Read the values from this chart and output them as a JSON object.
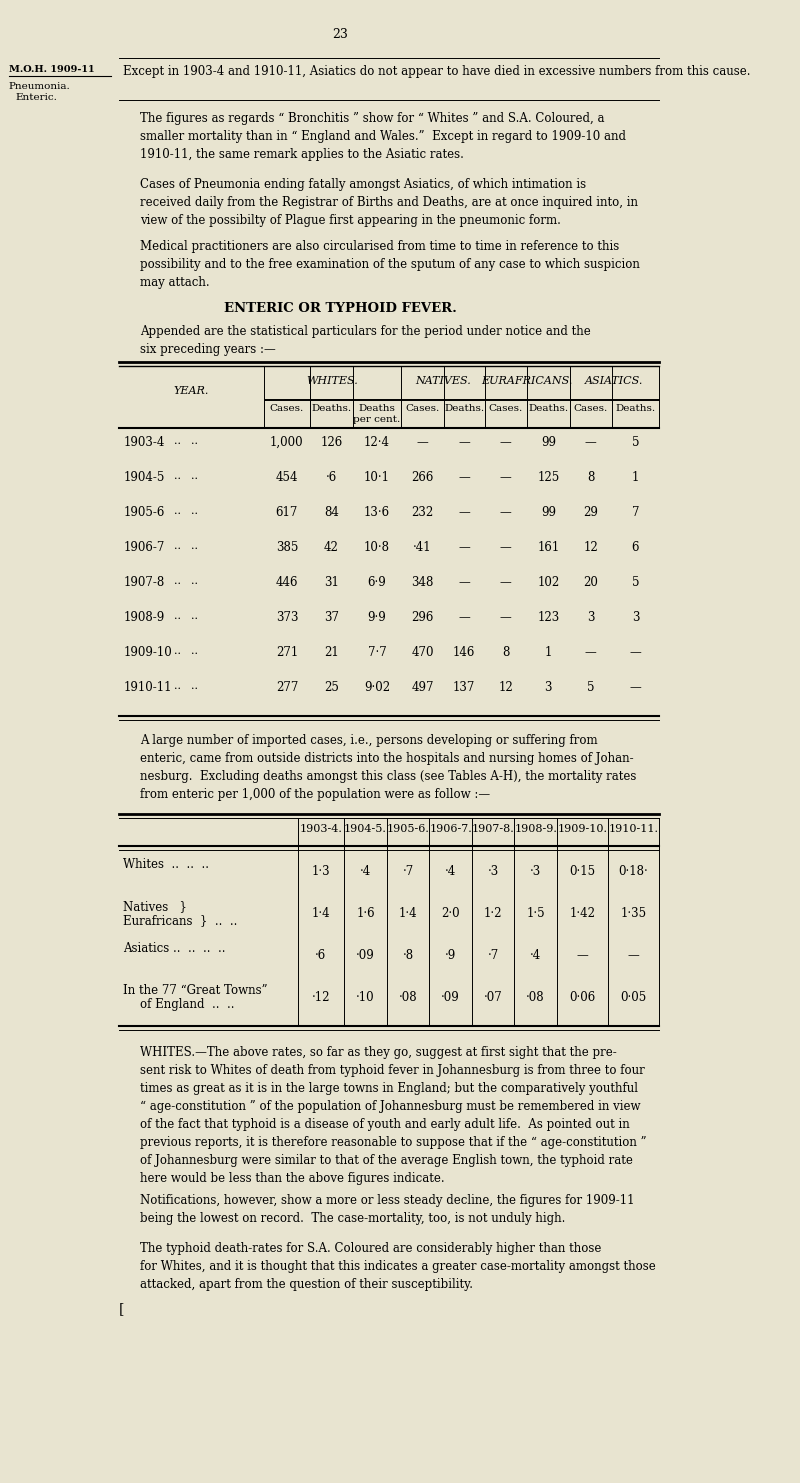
{
  "bg_color": "#e8e4d0",
  "page_number": "23",
  "margin_label_1": "M.O.H. 1909-11",
  "margin_label_2": "Pneumonia.",
  "margin_label_3": "Enteric.",
  "table1_col_groups": [
    "WHITES.",
    "NATIVES.",
    "EURAFRICANS.",
    "ASIATICS."
  ],
  "table1_rows": [
    [
      "1903-4",
      "..",
      "..",
      "1,000",
      "126",
      "12·4",
      "—",
      "—",
      "—",
      "99",
      "—",
      "5"
    ],
    [
      "1904-5",
      "..",
      "..",
      "454",
      "·6",
      "10·1",
      "266",
      "—",
      "—",
      "125",
      "8",
      "1"
    ],
    [
      "1905-6",
      "..",
      "..",
      "617",
      "84",
      "13·6",
      "232",
      "—",
      "—",
      "99",
      "29",
      "7"
    ],
    [
      "1906-7",
      "..",
      "..",
      "385",
      "42",
      "10·8",
      "·41",
      "—",
      "—",
      "161",
      "12",
      "6"
    ],
    [
      "1907-8",
      "..",
      "..",
      "446",
      "31",
      "6·9",
      "348",
      "—",
      "—",
      "102",
      "20",
      "5"
    ],
    [
      "1908-9",
      "..",
      "..",
      "373",
      "37",
      "9·9",
      "296",
      "—",
      "—",
      "123",
      "3",
      "3"
    ],
    [
      "1909-10",
      "..",
      "..",
      "271",
      "21",
      "7·7",
      "470",
      "146",
      "8",
      "1",
      "—",
      "—"
    ],
    [
      "1910-11",
      "..",
      "..",
      "277",
      "25",
      "9·02",
      "497",
      "137",
      "12",
      "3",
      "5",
      "—"
    ]
  ],
  "table2_years": [
    "1903-4.",
    "1904-5.",
    "1905-6.",
    "1906-7.",
    "1907-8.",
    "1908-9.",
    "1909-10.",
    "1910-11."
  ],
  "table2_rows": [
    {
      "label": "Whites  ..  ..  ..",
      "values": [
        "1·3",
        "·4",
        "·7",
        "·4",
        "·3",
        "·3",
        "0·15",
        "0·18·"
      ]
    },
    {
      "label": "Natives / Eurafricans",
      "values": [
        "1·4",
        "1·6",
        "1·4",
        "2·0",
        "1·2",
        "1·5",
        "1·42",
        "1·35"
      ]
    },
    {
      "label": "Asiatics ..  ..  ..  ..",
      "values": [
        "·6",
        "·09",
        "·8",
        "·9",
        "·7",
        "·4",
        "—",
        "—"
      ]
    },
    {
      "label": "In the 77 Great Towns of England",
      "values": [
        "·12",
        "·10",
        "·08",
        "·09",
        "·07",
        "·08",
        "0·06",
        "0·05"
      ]
    }
  ]
}
